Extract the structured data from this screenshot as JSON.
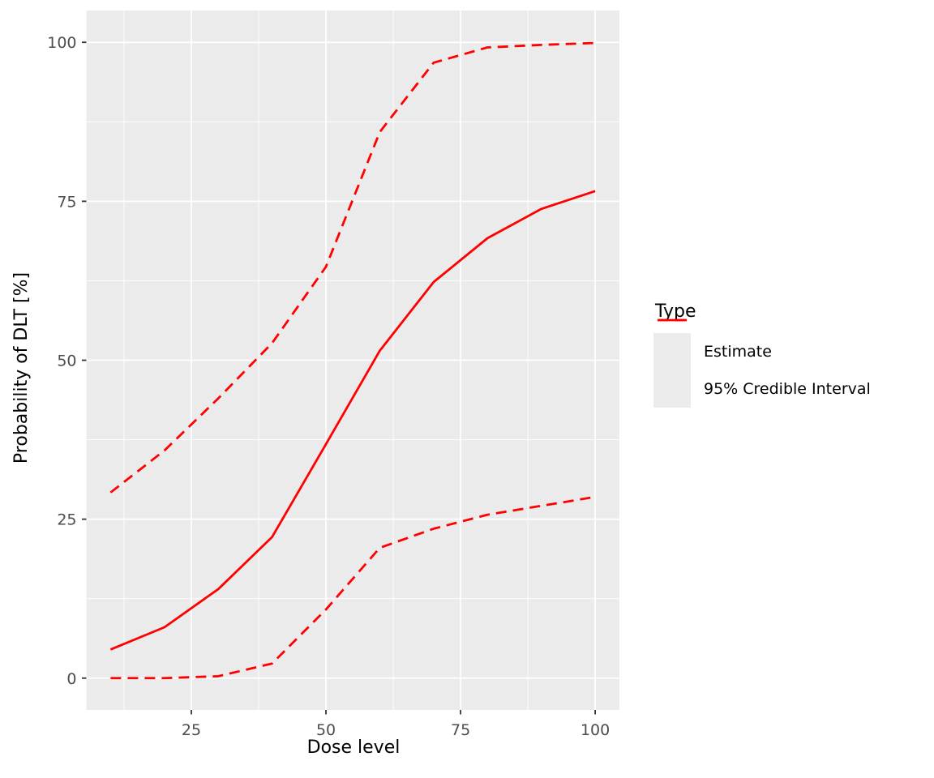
{
  "figure": {
    "background": "#FFFFFF",
    "panel_background": "#EBEBEB",
    "grid_color": "#FFFFFF",
    "axis_text_color": "#4D4D4D",
    "tick_mark_color": "#333333",
    "axis_title_color": "#000000",
    "line_color": "#FF0000"
  },
  "chart_data": {
    "type": "line",
    "title": "",
    "xlabel": "Dose level",
    "ylabel": "Probability of DLT [%]",
    "x": [
      10,
      20,
      30,
      40,
      50,
      60,
      70,
      80,
      90,
      100
    ],
    "series": [
      {
        "name": "Estimate",
        "style": "solid",
        "values": [
          4.5,
          8.0,
          14.0,
          22.2,
          36.8,
          51.5,
          62.3,
          69.2,
          73.8,
          76.6
        ]
      },
      {
        "name": "95% Credible Interval (upper)",
        "style": "dashed",
        "values": [
          29.2,
          35.8,
          44.0,
          52.7,
          64.7,
          85.9,
          96.8,
          99.2,
          99.6,
          99.9
        ]
      },
      {
        "name": "95% Credible Interval (lower)",
        "style": "dashed",
        "values": [
          0.0,
          0.0,
          0.3,
          2.3,
          10.8,
          20.5,
          23.5,
          25.7,
          27.1,
          28.5
        ]
      }
    ],
    "xlim": [
      5.5,
      104.5
    ],
    "ylim": [
      -5,
      105
    ],
    "x_major_ticks": [
      25,
      50,
      75,
      100
    ],
    "x_minor_ticks": [
      12.5,
      37.5,
      62.5,
      87.5
    ],
    "y_major_ticks": [
      0,
      25,
      50,
      75,
      100
    ],
    "y_minor_ticks": [
      12.5,
      37.5,
      62.5,
      87.5
    ],
    "grid": true,
    "legend": {
      "title": "Type",
      "position": "right",
      "items": [
        {
          "label": "Estimate",
          "style": "solid"
        },
        {
          "label": "95% Credible Interval",
          "style": "dashed"
        }
      ]
    }
  }
}
